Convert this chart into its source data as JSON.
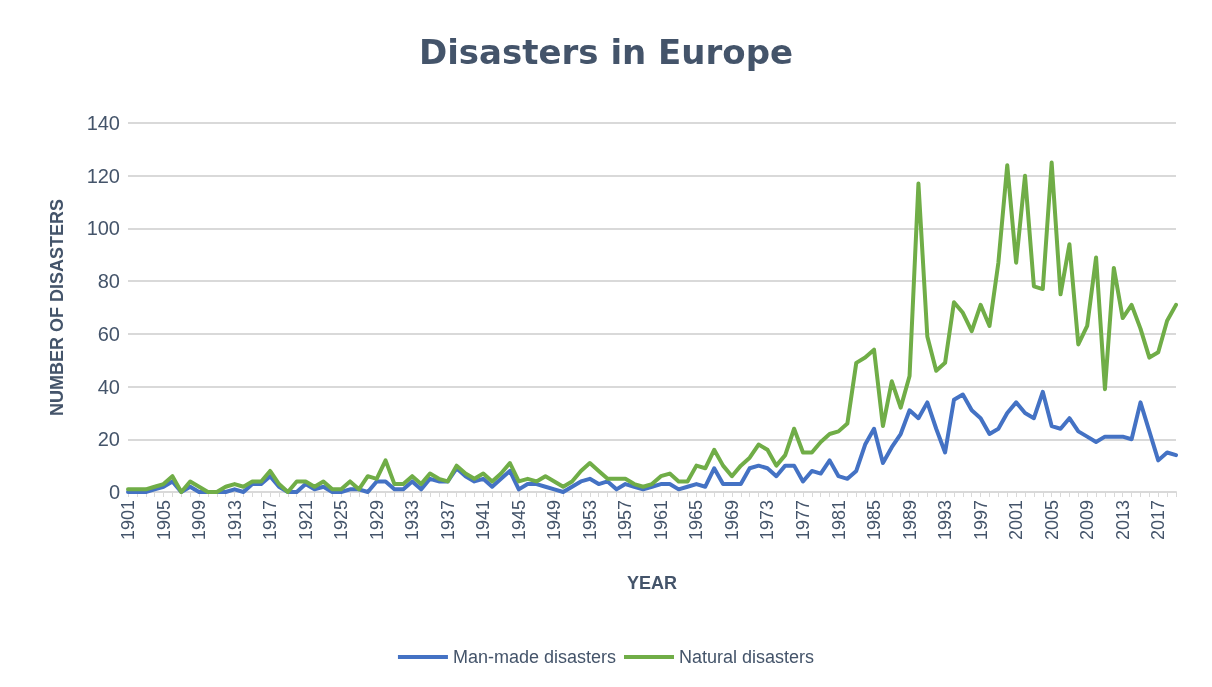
{
  "chart_data": {
    "type": "line",
    "title": "Disasters in Europe",
    "xlabel": "YEAR",
    "ylabel": "NUMBER OF DISASTERS",
    "categories": [
      "1901",
      null,
      null,
      null,
      "1905",
      null,
      null,
      null,
      "1909",
      null,
      null,
      null,
      "1913",
      null,
      null,
      null,
      "1917",
      null,
      null,
      null,
      "1921",
      null,
      null,
      null,
      "1925",
      null,
      null,
      null,
      "1929",
      null,
      null,
      null,
      "1933",
      null,
      null,
      null,
      "1937",
      null,
      null,
      null,
      "1941",
      null,
      null,
      null,
      "1945",
      null,
      null,
      null,
      "1949",
      null,
      null,
      null,
      "1953",
      null,
      null,
      null,
      "1957",
      null,
      null,
      null,
      "1961",
      null,
      null,
      null,
      "1965",
      null,
      null,
      null,
      "1969",
      null,
      null,
      null,
      "1973",
      null,
      null,
      null,
      "1977",
      null,
      null,
      null,
      "1981",
      null,
      null,
      null,
      "1985",
      null,
      null,
      null,
      "1989",
      null,
      null,
      null,
      "1993",
      null,
      null,
      null,
      "1997",
      null,
      null,
      null,
      "2001",
      null,
      null,
      null,
      "2005",
      null,
      null,
      null,
      "2009",
      null,
      null,
      null,
      "2013",
      null,
      null,
      null,
      "2017",
      null,
      null
    ],
    "series": [
      {
        "name": "Man-made disasters",
        "color": "#4472c4",
        "values": [
          0,
          0,
          0,
          1,
          2,
          4,
          0,
          2,
          0,
          0,
          0,
          0,
          1,
          0,
          3,
          3,
          6,
          2,
          0,
          0,
          3,
          1,
          2,
          0,
          0,
          1,
          1,
          0,
          4,
          4,
          1,
          1,
          4,
          1,
          5,
          4,
          4,
          9,
          6,
          4,
          5,
          2,
          5,
          8,
          1,
          3,
          3,
          2,
          1,
          0,
          2,
          4,
          5,
          3,
          4,
          1,
          3,
          2,
          1,
          2,
          3,
          3,
          1,
          2,
          3,
          2,
          9,
          3,
          3,
          3,
          9,
          10,
          9,
          6,
          10,
          10,
          4,
          8,
          7,
          12,
          6,
          5,
          8,
          18,
          24,
          11,
          17,
          22,
          31,
          28,
          34,
          24,
          15,
          35,
          37,
          31,
          28,
          22,
          24,
          30,
          34,
          30,
          28,
          38,
          25,
          24,
          28,
          23,
          21,
          19,
          21,
          21,
          21,
          20,
          34,
          23,
          12,
          15,
          14
        ]
      },
      {
        "name": "Natural disasters",
        "color": "#70ad47",
        "values": [
          1,
          1,
          1,
          2,
          3,
          6,
          0,
          4,
          2,
          0,
          0,
          2,
          3,
          2,
          4,
          4,
          8,
          3,
          0,
          4,
          4,
          2,
          4,
          1,
          1,
          4,
          1,
          6,
          5,
          12,
          3,
          3,
          6,
          3,
          7,
          5,
          4,
          10,
          7,
          5,
          7,
          4,
          7,
          11,
          4,
          5,
          4,
          6,
          4,
          2,
          4,
          8,
          11,
          8,
          5,
          5,
          5,
          3,
          2,
          3,
          6,
          7,
          4,
          4,
          10,
          9,
          16,
          10,
          6,
          10,
          13,
          18,
          16,
          10,
          14,
          24,
          15,
          15,
          19,
          22,
          23,
          26,
          49,
          51,
          54,
          25,
          42,
          32,
          44,
          117,
          59,
          46,
          49,
          72,
          68,
          61,
          71,
          63,
          87,
          124,
          87,
          120,
          78,
          77,
          125,
          75,
          94,
          56,
          63,
          89,
          39,
          85,
          66,
          71,
          62,
          51,
          53,
          65,
          71
        ]
      }
    ],
    "ylim": [
      0,
      140
    ],
    "yticks": [
      0,
      20,
      40,
      60,
      80,
      100,
      120,
      140
    ],
    "grid": "y",
    "legend": "bottom",
    "marker": "none",
    "line_style": "solid"
  }
}
